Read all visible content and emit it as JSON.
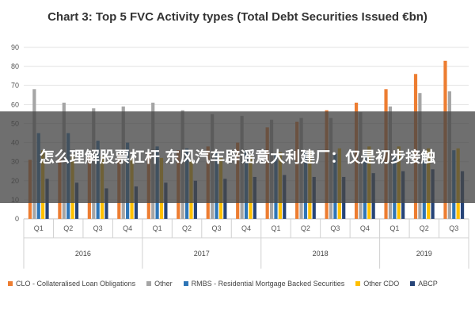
{
  "chart_data": {
    "type": "bar",
    "title": "Chart 3: Top 5 FVC Activity types (Total Debt Securities Issued €bn)",
    "categories": [
      "Q1",
      "Q2",
      "Q3",
      "Q4",
      "Q1",
      "Q2",
      "Q3",
      "Q4",
      "Q1",
      "Q2",
      "Q3",
      "Q4",
      "Q1",
      "Q2",
      "Q3"
    ],
    "years": [
      {
        "label": "2016",
        "quarters": 4
      },
      {
        "label": "2017",
        "quarters": 4
      },
      {
        "label": "2018",
        "quarters": 4
      },
      {
        "label": "2019",
        "quarters": 3
      }
    ],
    "ylim": [
      0,
      90
    ],
    "yticks": [
      0,
      10,
      20,
      30,
      40,
      50,
      60,
      70,
      80,
      90
    ],
    "grid": true,
    "legend_position": "bottom",
    "series": [
      {
        "name": "CLO - Collateralised Loan Obligations",
        "color": "#ed7d31",
        "values": [
          31,
          32,
          33,
          34,
          35,
          36,
          38,
          40,
          48,
          51,
          57,
          61,
          68,
          76,
          83
        ]
      },
      {
        "name": "Other",
        "color": "#a5a5a5",
        "values": [
          68,
          61,
          58,
          59,
          61,
          57,
          55,
          54,
          52,
          53,
          53,
          56,
          59,
          66,
          67
        ]
      },
      {
        "name": "RMBS - Residential Mortgage Backed Securities",
        "color": "#2e75b6",
        "values": [
          45,
          45,
          41,
          40,
          38,
          37,
          35,
          36,
          34,
          35,
          34,
          35,
          34,
          36,
          36
        ]
      },
      {
        "name": "Other CDO",
        "color": "#ffc000",
        "values": [
          36,
          34,
          33,
          32,
          32,
          31,
          32,
          33,
          35,
          36,
          37,
          38,
          38,
          37,
          37
        ]
      },
      {
        "name": "ABCP",
        "color": "#264478",
        "values": [
          21,
          19,
          16,
          17,
          19,
          20,
          21,
          22,
          23,
          22,
          22,
          24,
          25,
          26,
          25
        ]
      }
    ]
  },
  "overlay_text": "怎么理解股票杠杆 东风汽车辟谣意大利建厂：仅是初步接触"
}
